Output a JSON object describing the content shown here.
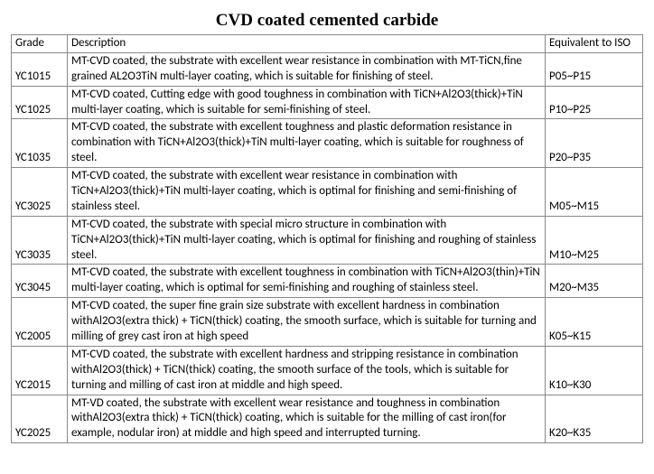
{
  "title": "CVD coated cemented carbide",
  "columns": [
    "Grade",
    "Description",
    "Equivalent to ISO"
  ],
  "rows": [
    {
      "grade": "YC1015",
      "description": "MT-CVD coated, the substrate with excellent wear resistance in combination with MT-TiCN,fine grained AL2O3TiN multi-layer coating, which is suitable for finishing of steel.",
      "iso": "P05~P15"
    },
    {
      "grade": "YC1025",
      "description": "MT-CVD coated, Cutting edge with good toughness in combination with TiCN+Al2O3(thick)+TiN multi-layer coating, which is suitable for semi-finishing of steel.",
      "iso": "P10~P25"
    },
    {
      "grade": "YC1035",
      "description": "MT-CVD coated, the substrate with excellent toughness and plastic deformation resistance in combination with TiCN+Al2O3(thick)+TiN multi-layer coating, which is suitable for roughness of steel.",
      "iso": "P20~P35"
    },
    {
      "grade": "YC3025",
      "description": "MT-CVD coated, the substrate with excellent wear resistance in combination with TiCN+Al2O3(thick)+TiN multi-layer coating, which is optimal for finishing and semi-finishing of stainless steel.",
      "iso": "M05~M15"
    },
    {
      "grade": "YC3035",
      "description": "MT-CVD coated, the substrate with special micro structure in combination with TiCN+Al2O3(thick)+TiN multi-layer coating, which is optimal for finishing and roughing of stainless steel.",
      "iso": "M10~M25"
    },
    {
      "grade": "YC3045",
      "description": "MT-CVD coated, the substrate with excellent toughness in combination with TiCN+Al2O3(thin)+TiN multi-layer coating, which is optimal for semi-finishing and roughing of stainless steel.",
      "iso": "M20~M35"
    },
    {
      "grade": "YC2005",
      "description": "MT-CVD coated, the super fine grain size substrate with excellent hardness in combination withAl2O3(extra thick) + TiCN(thick) coating, the smooth surface, which is suitable for turning and milling of grey cast iron at high speed",
      "iso": "K05~K15"
    },
    {
      "grade": "YC2015",
      "description": "MT-CVD coated, the substrate with excellent hardness and stripping resistance in combination withAl2O3(thick) + TiCN(thick) coating, the smooth surface of the tools, which is suitable for turning and milling of cast iron at middle and high speed.",
      "iso": "K10~K30"
    },
    {
      "grade": "YC2025",
      "description": "MT-VD coated, the substrate with excellent wear resistance and toughness in combination withAl2O3(extra thick) + TiCN(thick) coating, which is suitable for the milling of cast iron(for example, nodular iron) at middle and high speed and interrupted turning.",
      "iso": "K20~K35"
    }
  ]
}
